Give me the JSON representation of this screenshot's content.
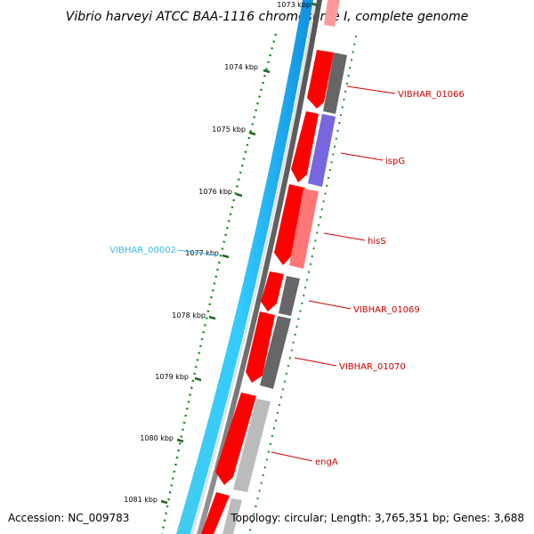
{
  "title": "Vibrio harveyi ATCC BAA-1116 chromosome I, complete genome",
  "footer": {
    "accession": "Accession: NC_009783",
    "summary": "Topology: circular; Length: 3,765,351 bp; Genes: 3,688"
  },
  "colors": {
    "background": "#ffffff",
    "backbone_cyan": "#33ccff",
    "cds": "#ff0000",
    "gene_dark": "#666666",
    "gene_light": "#bbbbbb",
    "gene_blue": "#7766dd",
    "gene_pink": "#ff7777",
    "tick_green": "#227722",
    "label_red": "#cc0000",
    "label_cyan": "#33bbee"
  },
  "scale_labels": [
    "1073 kbp",
    "1074 kbp",
    "1075 kbp",
    "1076 kbp",
    "1077 kbp",
    "1078 kbp",
    "1079 kbp",
    "1080 kbp",
    "1081 kbp"
  ],
  "gene_labels": [
    {
      "text": "VIBHAR_01066",
      "color": "label_red"
    },
    {
      "text": "ispG",
      "color": "label_red"
    },
    {
      "text": "hisS",
      "color": "label_red"
    },
    {
      "text": "VIBHAR_01069",
      "color": "label_red"
    },
    {
      "text": "VIBHAR_01070",
      "color": "label_red"
    },
    {
      "text": "engA",
      "color": "label_red"
    }
  ],
  "backbone_label": {
    "text": "VIBHAR_00002",
    "color": "label_cyan"
  }
}
